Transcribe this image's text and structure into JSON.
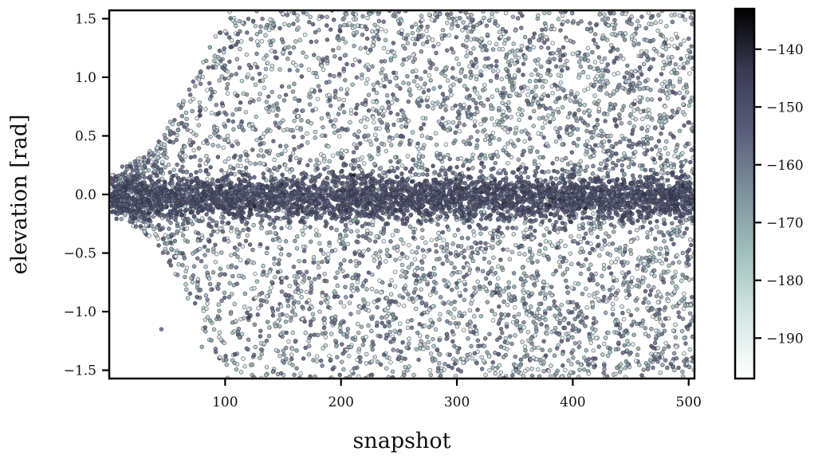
{
  "chart_data": {
    "type": "scatter",
    "title": "",
    "xlabel": "snapshot",
    "ylabel": "elevation [rad]",
    "xlim": [
      0,
      505
    ],
    "ylim": [
      -1.571,
      1.571
    ],
    "x_ticks": [
      100,
      200,
      300,
      400,
      500
    ],
    "x_tick_labels": [
      "100",
      "200",
      "300",
      "400",
      "500"
    ],
    "y_ticks": [
      -1.5,
      -1.0,
      -0.5,
      0.0,
      0.5,
      1.0,
      1.5
    ],
    "y_tick_labels": [
      "−1.5",
      "−1.0",
      "−0.5",
      "0.0",
      "0.5",
      "1.0",
      "1.5"
    ],
    "grid": false,
    "colorbar": {
      "colormap": "bone_r",
      "range": [
        -197,
        -133
      ],
      "ticks": [
        -190,
        -180,
        -170,
        -160,
        -150,
        -140
      ],
      "tick_labels": [
        "−190",
        "−180",
        "−170",
        "−160",
        "−150",
        "−140"
      ],
      "colors": [
        "#ffffff",
        "#d6e7e4",
        "#a3c1be",
        "#7f929c",
        "#5b5e7a",
        "#3a3a52",
        "#000000"
      ]
    },
    "distribution_description": {
      "x_start": 1,
      "x_end": 505,
      "core_band_elevation": [
        -0.2,
        0.15
      ],
      "core_band_color_value": -152,
      "spread_begins_near_snapshot": 40,
      "full_spread_after_snapshot": 100,
      "outer_points_color_value_range": [
        -190,
        -150
      ],
      "marker_edge_color": "#2e2e40"
    },
    "sample_points": [
      [
        5,
        -0.08,
        -152
      ],
      [
        20,
        -0.1,
        -150
      ],
      [
        40,
        -0.05,
        -155
      ],
      [
        45,
        -1.15,
        -158
      ],
      [
        60,
        0.6,
        -165
      ],
      [
        70,
        0.85,
        -156
      ],
      [
        80,
        -1.3,
        -170
      ],
      [
        100,
        1.1,
        -160
      ],
      [
        120,
        -1.05,
        -145
      ],
      [
        125,
        -0.1,
        -140
      ],
      [
        150,
        1.3,
        -162
      ],
      [
        180,
        -1.2,
        -168
      ],
      [
        200,
        0.9,
        -175
      ],
      [
        250,
        -1.4,
        -160
      ],
      [
        300,
        1.5,
        -180
      ],
      [
        350,
        -0.9,
        -165
      ],
      [
        400,
        1.2,
        -185
      ],
      [
        450,
        -1.35,
        -158
      ],
      [
        470,
        0.3,
        -148
      ],
      [
        500,
        -0.6,
        -160
      ]
    ]
  }
}
